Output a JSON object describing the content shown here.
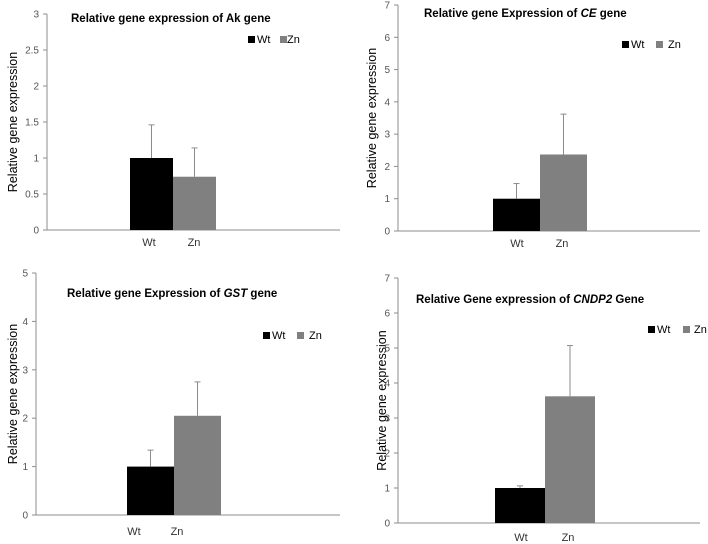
{
  "colors": {
    "wt": "#000000",
    "zn": "#808080",
    "axis": "#8c8c8c",
    "err": "#8c8c8c",
    "text": "#333333"
  },
  "chart_data": [
    {
      "type": "bar",
      "title": [
        {
          "t": "Relative gene expression of Ak gene",
          "italic": false
        }
      ],
      "categories": [
        "Wt",
        "Zn"
      ],
      "values": [
        1.0,
        0.74
      ],
      "errors": [
        0.46,
        0.4
      ],
      "ylim": [
        0,
        3
      ],
      "yticks": [
        "0",
        "0.5",
        "1",
        "1.5",
        "2",
        "2.5",
        "3"
      ],
      "ylabel": "Relative gene expression",
      "xlabel": "",
      "legend": [
        "Wt",
        "Zn"
      ],
      "legend_position": "top-right",
      "grid": false
    },
    {
      "type": "bar",
      "title": [
        {
          "t": "Relative gene Expression of ",
          "italic": false
        },
        {
          "t": "CE",
          "italic": true
        },
        {
          "t": " gene",
          "italic": false
        }
      ],
      "categories": [
        "Wt",
        "Zn"
      ],
      "values": [
        1.0,
        2.37
      ],
      "errors": [
        0.47,
        1.25
      ],
      "ylim": [
        0,
        7
      ],
      "yticks": [
        "0",
        "1",
        "2",
        "3",
        "4",
        "5",
        "6",
        "7"
      ],
      "ylabel": "Relative gene expression",
      "xlabel": "",
      "legend": [
        "Wt",
        "Zn"
      ],
      "legend_position": "top-right",
      "grid": false
    },
    {
      "type": "bar",
      "title": [
        {
          "t": "Relative gene Expression of ",
          "italic": false
        },
        {
          "t": "GST",
          "italic": true
        },
        {
          "t": " gene",
          "italic": false
        }
      ],
      "categories": [
        "Wt",
        "Zn"
      ],
      "values": [
        1.0,
        2.05
      ],
      "errors": [
        0.34,
        0.7
      ],
      "ylim": [
        0,
        5
      ],
      "yticks": [
        "0",
        "1",
        "2",
        "3",
        "4",
        "5"
      ],
      "ylabel": "Relative gene expression",
      "xlabel": "",
      "legend": [
        "Wt",
        "Zn"
      ],
      "legend_position": "top-right",
      "grid": false
    },
    {
      "type": "bar",
      "title": [
        {
          "t": "Relative Gene expression of ",
          "italic": false
        },
        {
          "t": "CNDP2",
          "italic": true
        },
        {
          "t": " Gene",
          "italic": false
        }
      ],
      "categories": [
        "Wt",
        "Zn"
      ],
      "values": [
        1.0,
        3.62
      ],
      "errors": [
        0.06,
        1.45
      ],
      "ylim": [
        0,
        7
      ],
      "yticks": [
        "0",
        "1",
        "2",
        "3",
        "4",
        "5",
        "6",
        "7"
      ],
      "ylabel": "Relative gene expression",
      "xlabel": "",
      "legend": [
        "Wt",
        "Zn"
      ],
      "legend_position": "top-right",
      "grid": false
    }
  ]
}
